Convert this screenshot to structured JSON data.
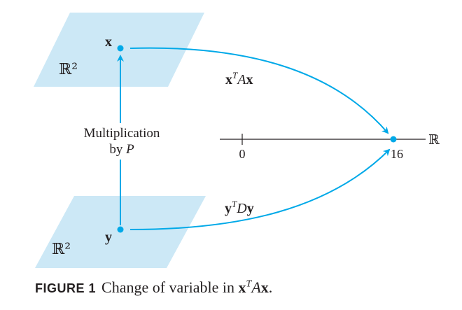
{
  "diagram": {
    "plane_top_label": "ℝ²",
    "plane_bottom_label": "ℝ²",
    "point_x_label": "x",
    "point_y_label": "y",
    "arrow_vertical_label_line1": "Multiplication",
    "arrow_vertical_label_line2_prefix": "by ",
    "arrow_vertical_label_line2_var": "P",
    "arrow_top_label": {
      "bold1": "x",
      "sup": "T",
      "italic": "A",
      "bold2": "x"
    },
    "arrow_bottom_label": {
      "bold1": "y",
      "sup": "T",
      "italic": "D",
      "bold2": "y"
    },
    "axis_label": "ℝ",
    "tick_zero": "0",
    "tick_value": "16",
    "colors": {
      "plane": "#cce8f6",
      "arrow": "#00a9e8",
      "point": "#00a9e8",
      "axis": "#231f20"
    }
  },
  "caption": {
    "label": "FIGURE 1",
    "text_prefix": "Change of variable in ",
    "math": {
      "bold1": "x",
      "sup": "T",
      "italic": "A",
      "bold2": "x"
    },
    "text_suffix": "."
  }
}
